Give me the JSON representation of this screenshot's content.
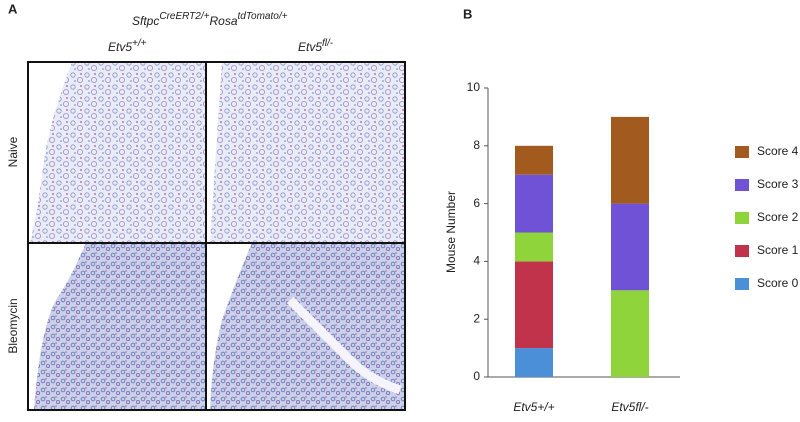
{
  "panel_a": {
    "label": "A",
    "title": [
      "Sftpc",
      "CreERT2/+",
      "Rosa",
      "tdTomato/+"
    ],
    "columns": [
      [
        "Etv5",
        "+/+"
      ],
      [
        "Etv5",
        "fl/-"
      ]
    ],
    "rows": [
      "Naive",
      "Bleomycin"
    ]
  },
  "chart_data": {
    "type": "stacked-bar",
    "label": "B",
    "ylabel": "Mouse Number",
    "categories": [
      "Etv5+/+",
      "Etv5fl/-"
    ],
    "series": [
      {
        "name": "Score 0",
        "color": "#4a8fd8",
        "values": [
          1,
          0
        ]
      },
      {
        "name": "Score 1",
        "color": "#c0334a",
        "values": [
          3,
          0
        ]
      },
      {
        "name": "Score 2",
        "color": "#8fd43a",
        "values": [
          1,
          3
        ]
      },
      {
        "name": "Score 3",
        "color": "#6f52d6",
        "values": [
          2,
          3
        ]
      },
      {
        "name": "Score 4",
        "color": "#a35a1e",
        "values": [
          1,
          3
        ]
      }
    ],
    "ylim": [
      0,
      10
    ],
    "yticks": [
      0,
      2,
      4,
      6,
      8,
      10
    ]
  }
}
